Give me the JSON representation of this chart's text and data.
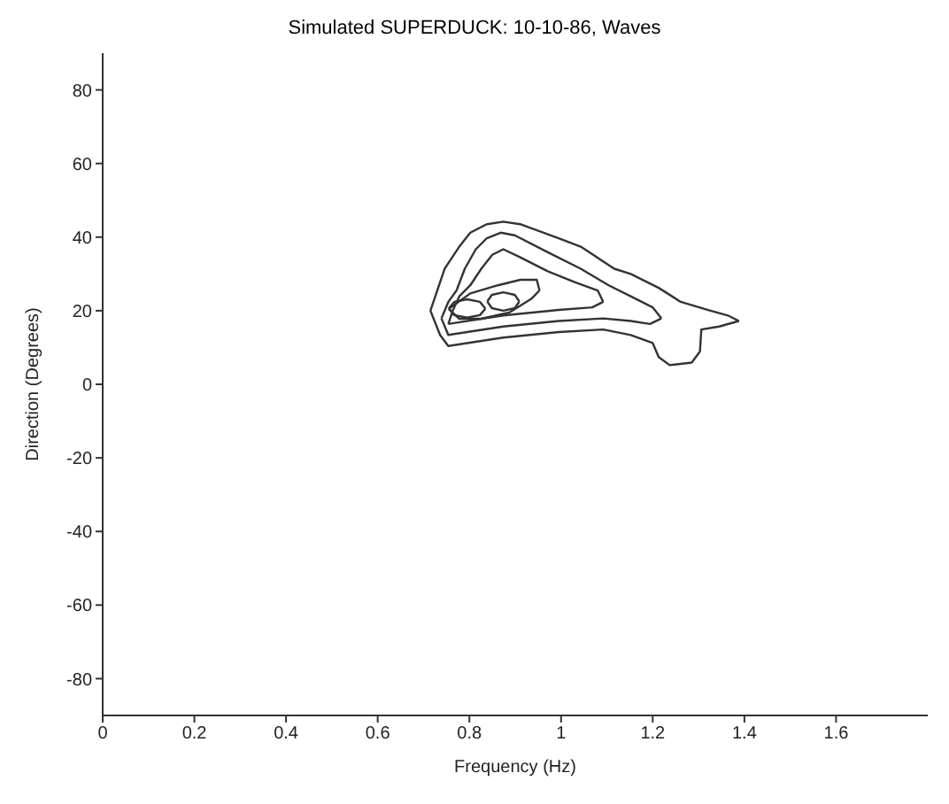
{
  "chart_data": {
    "type": "line",
    "title": "Simulated SUPERDUCK:  10-10-86, Waves",
    "xlabel": "Frequency (Hz)",
    "ylabel": "Direction (Degrees)",
    "xlim": [
      0,
      1.8
    ],
    "ylim": [
      -90,
      90
    ],
    "xticks": [
      0,
      0.2,
      0.4,
      0.6,
      0.8,
      1,
      1.2,
      1.4,
      1.6
    ],
    "yticks": [
      -80,
      -60,
      -40,
      -20,
      0,
      20,
      40,
      60,
      80
    ],
    "marker": "none",
    "line_style": "solid",
    "series": [
      {
        "color": "#333333",
        "x": [
          0.715,
          0.736,
          0.754,
          0.874,
          0.995,
          1.092,
          1.152,
          1.2,
          1.213,
          1.237,
          1.285,
          1.303,
          1.306,
          1.345,
          1.388
        ],
        "values": [
          20,
          13.4,
          10.4,
          12.7,
          14.2,
          14.9,
          13.4,
          11.2,
          7.4,
          5.2,
          5.9,
          8.9,
          14.9,
          15.7,
          17.2
        ]
      },
      {
        "color": "#333333",
        "x": [
          0.715,
          0.746,
          0.778,
          0.802,
          0.838,
          0.874,
          0.911,
          0.995,
          1.043,
          1.116,
          1.152,
          1.213,
          1.261,
          1.321,
          1.364,
          1.388
        ],
        "values": [
          20,
          31.4,
          37.4,
          41.2,
          43.5,
          44.2,
          43.5,
          39.7,
          37.4,
          31.4,
          30,
          26.2,
          22.4,
          20.2,
          18.7,
          17.2
        ]
      },
      {
        "color": "#333333",
        "x": [
          0.739,
          0.754,
          0.874,
          0.995,
          1.092,
          1.152,
          1.194,
          1.219
        ],
        "values": [
          17.9,
          13.4,
          15.7,
          17.2,
          17.9,
          17.2,
          16.4,
          17.9
        ]
      },
      {
        "color": "#333333",
        "x": [
          0.739,
          0.754,
          0.772,
          0.79,
          0.814,
          0.838,
          0.868,
          0.899,
          0.971,
          1.043,
          1.104,
          1.152,
          1.2,
          1.219
        ],
        "values": [
          17.9,
          22.4,
          25.5,
          31.4,
          36.7,
          39.7,
          41.2,
          40.5,
          35.9,
          31.4,
          26.9,
          23.9,
          20.9,
          17.9
        ]
      },
      {
        "color": "#333333",
        "x": [
          0.754,
          0.874,
          0.995,
          1.068,
          1.092
        ],
        "values": [
          16.4,
          18.7,
          20.2,
          20.9,
          22.4
        ]
      },
      {
        "color": "#333333",
        "x": [
          0.754,
          0.764,
          0.778,
          0.802,
          0.826,
          0.85,
          0.874,
          0.911,
          0.971,
          1.031,
          1.08,
          1.092
        ],
        "values": [
          16.4,
          20.1,
          23.9,
          26.9,
          31.4,
          35.2,
          36.7,
          34.5,
          30.7,
          27.7,
          25.5,
          22.4
        ]
      },
      {
        "color": "#333333",
        "x": [
          0.755,
          0.778,
          0.826,
          0.887,
          0.935,
          0.953
        ],
        "values": [
          20.5,
          17.8,
          17.8,
          19.5,
          23.2,
          25.5
        ]
      },
      {
        "color": "#333333",
        "x": [
          0.755,
          0.802,
          0.862,
          0.911,
          0.947,
          0.953
        ],
        "values": [
          20.5,
          24.7,
          26.9,
          28.4,
          28.4,
          25.5
        ]
      },
      {
        "color": "#333333",
        "x": [
          0.839,
          0.849,
          0.874,
          0.899,
          0.909
        ],
        "values": [
          22.5,
          20.7,
          20,
          20.7,
          22.5
        ]
      },
      {
        "color": "#333333",
        "x": [
          0.839,
          0.849,
          0.874,
          0.899,
          0.909
        ],
        "values": [
          22.5,
          24.3,
          25,
          24.3,
          22.5
        ]
      },
      {
        "color": "#333333",
        "x": [
          0.755,
          0.767,
          0.795,
          0.823,
          0.835
        ],
        "values": [
          20.6,
          18.8,
          18.1,
          18.8,
          20.6
        ]
      },
      {
        "color": "#333333",
        "x": [
          0.755,
          0.767,
          0.795,
          0.823,
          0.835
        ],
        "values": [
          20.6,
          22.4,
          23.1,
          22.4,
          20.6
        ]
      }
    ]
  }
}
